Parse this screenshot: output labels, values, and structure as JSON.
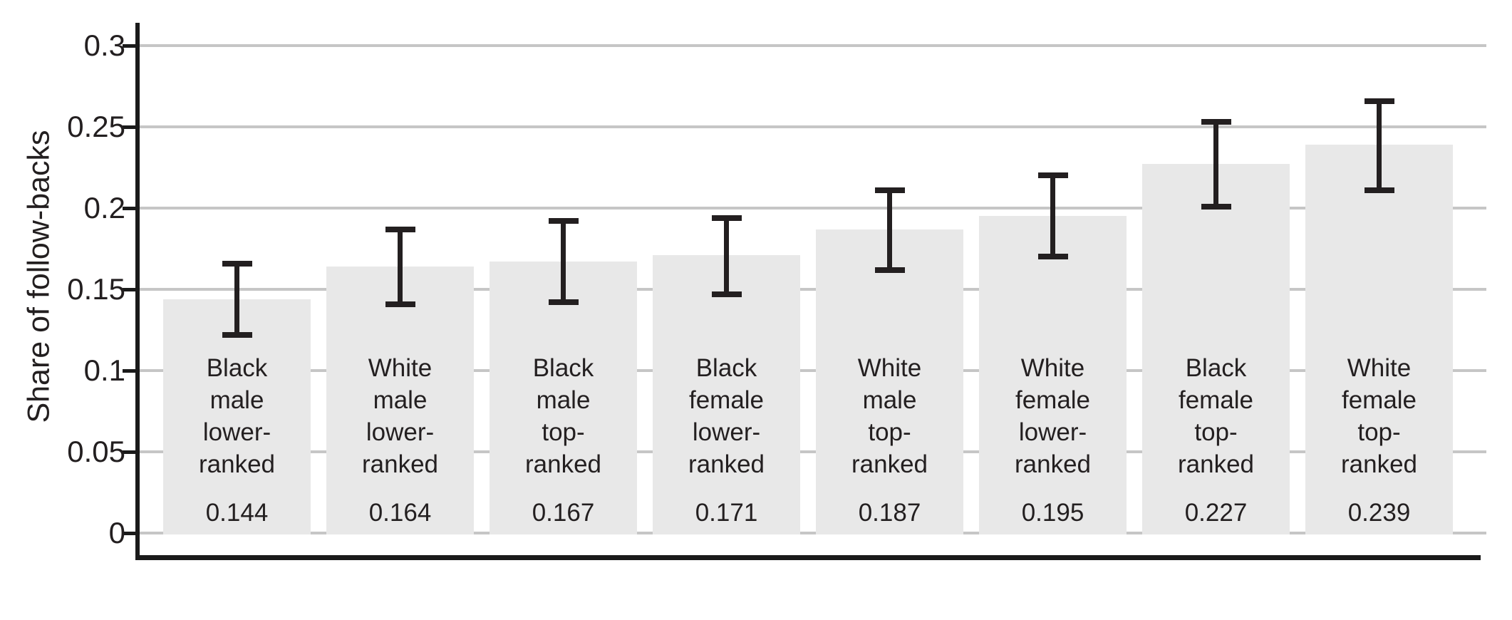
{
  "chart_data": {
    "type": "bar",
    "title": "",
    "xlabel": "",
    "ylabel": "Share of follow-backs",
    "ylim": [
      0,
      0.3
    ],
    "grid": true,
    "legend": null,
    "yticks": [
      {
        "value": 0.3,
        "label": "0.3"
      },
      {
        "value": 0.25,
        "label": "0.25"
      },
      {
        "value": 0.2,
        "label": "0.2"
      },
      {
        "value": 0.15,
        "label": "0.15"
      },
      {
        "value": 0.1,
        "label": "0.1"
      },
      {
        "value": 0.05,
        "label": "0.05"
      },
      {
        "value": 0,
        "label": "0"
      }
    ],
    "bars": [
      {
        "label": "Black male lower-ranked",
        "label_lines": [
          "Black",
          "male",
          "lower-",
          "ranked"
        ],
        "value": 0.144,
        "value_label": "0.144",
        "ci_low": 0.122,
        "ci_high": 0.166
      },
      {
        "label": "White male lower-ranked",
        "label_lines": [
          "White",
          "male",
          "lower-",
          "ranked"
        ],
        "value": 0.164,
        "value_label": "0.164",
        "ci_low": 0.141,
        "ci_high": 0.187
      },
      {
        "label": "Black male top-ranked",
        "label_lines": [
          "Black",
          "male",
          "top-",
          "ranked"
        ],
        "value": 0.167,
        "value_label": "0.167",
        "ci_low": 0.142,
        "ci_high": 0.192
      },
      {
        "label": "Black female lower-ranked",
        "label_lines": [
          "Black",
          "female",
          "lower-",
          "ranked"
        ],
        "value": 0.171,
        "value_label": "0.171",
        "ci_low": 0.147,
        "ci_high": 0.194
      },
      {
        "label": "White male top-ranked",
        "label_lines": [
          "White",
          "male",
          "top-",
          "ranked"
        ],
        "value": 0.187,
        "value_label": "0.187",
        "ci_low": 0.162,
        "ci_high": 0.211
      },
      {
        "label": "White female lower-ranked",
        "label_lines": [
          "White",
          "female",
          "lower-",
          "ranked"
        ],
        "value": 0.195,
        "value_label": "0.195",
        "ci_low": 0.17,
        "ci_high": 0.22
      },
      {
        "label": "Black female top-ranked",
        "label_lines": [
          "Black",
          "female",
          "top-",
          "ranked"
        ],
        "value": 0.227,
        "value_label": "0.227",
        "ci_low": 0.201,
        "ci_high": 0.253
      },
      {
        "label": "White female top-ranked",
        "label_lines": [
          "White",
          "female",
          "top-",
          "ranked"
        ],
        "value": 0.239,
        "value_label": "0.239",
        "ci_low": 0.211,
        "ci_high": 0.266
      }
    ],
    "colors": {
      "bar_fill": "#e8e8e8",
      "gridline": "#c6c6c6",
      "axis": "#1a1a1a",
      "error_bar": "#231f20",
      "text": "#231f20",
      "background": "#ffffff"
    }
  }
}
